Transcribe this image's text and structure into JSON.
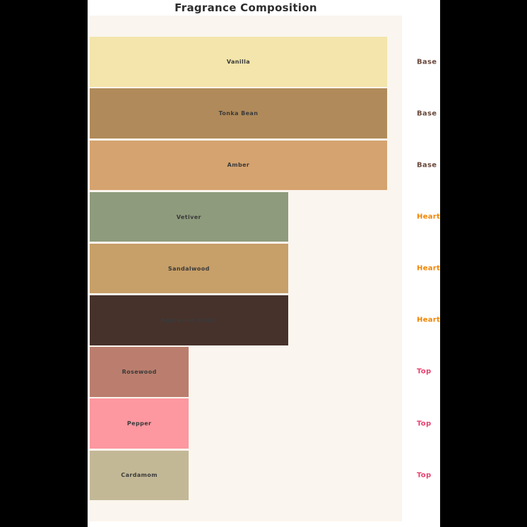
{
  "title": "Fragrance Composition",
  "colors": {
    "page_bg": "#000000",
    "figure_bg": "#ffffff",
    "axes_bg": "#FAF5EE",
    "title_color": "#2d2d2d",
    "bar_label_color": "#3a3a3a",
    "category_colors": {
      "Base": "#6B4A3D",
      "Heart": "#F28500",
      "Top": "#E9406E"
    }
  },
  "chart_data": {
    "type": "bar",
    "orientation": "horizontal",
    "title": "Fragrance Composition",
    "xlabel": "",
    "ylabel": "",
    "xlim": [
      0,
      47.25
    ],
    "grid": false,
    "legend": false,
    "axis_ticks_visible": false,
    "bars": [
      {
        "label": "Vanilla",
        "value": 45,
        "category": "Base",
        "color": "#F3E5AB"
      },
      {
        "label": "Tonka Bean",
        "value": 45,
        "category": "Base",
        "color": "#B08A5A"
      },
      {
        "label": "Amber",
        "value": 45,
        "category": "Base",
        "color": "#D5A36F"
      },
      {
        "label": "Vetiver",
        "value": 30,
        "category": "Heart",
        "color": "#8E9B7C"
      },
      {
        "label": "Sandalwood",
        "value": 30,
        "category": "Heart",
        "color": "#C79F68"
      },
      {
        "label": "Agarwood (Oud)",
        "value": 30,
        "category": "Heart",
        "color": "#47312B"
      },
      {
        "label": "Rosewood",
        "value": 15,
        "category": "Top",
        "color": "#BB7E6E"
      },
      {
        "label": "Pepper",
        "value": 15,
        "category": "Top",
        "color": "#FD97A0"
      },
      {
        "label": "Cardamom",
        "value": 15,
        "category": "Top",
        "color": "#C3B896"
      }
    ]
  }
}
